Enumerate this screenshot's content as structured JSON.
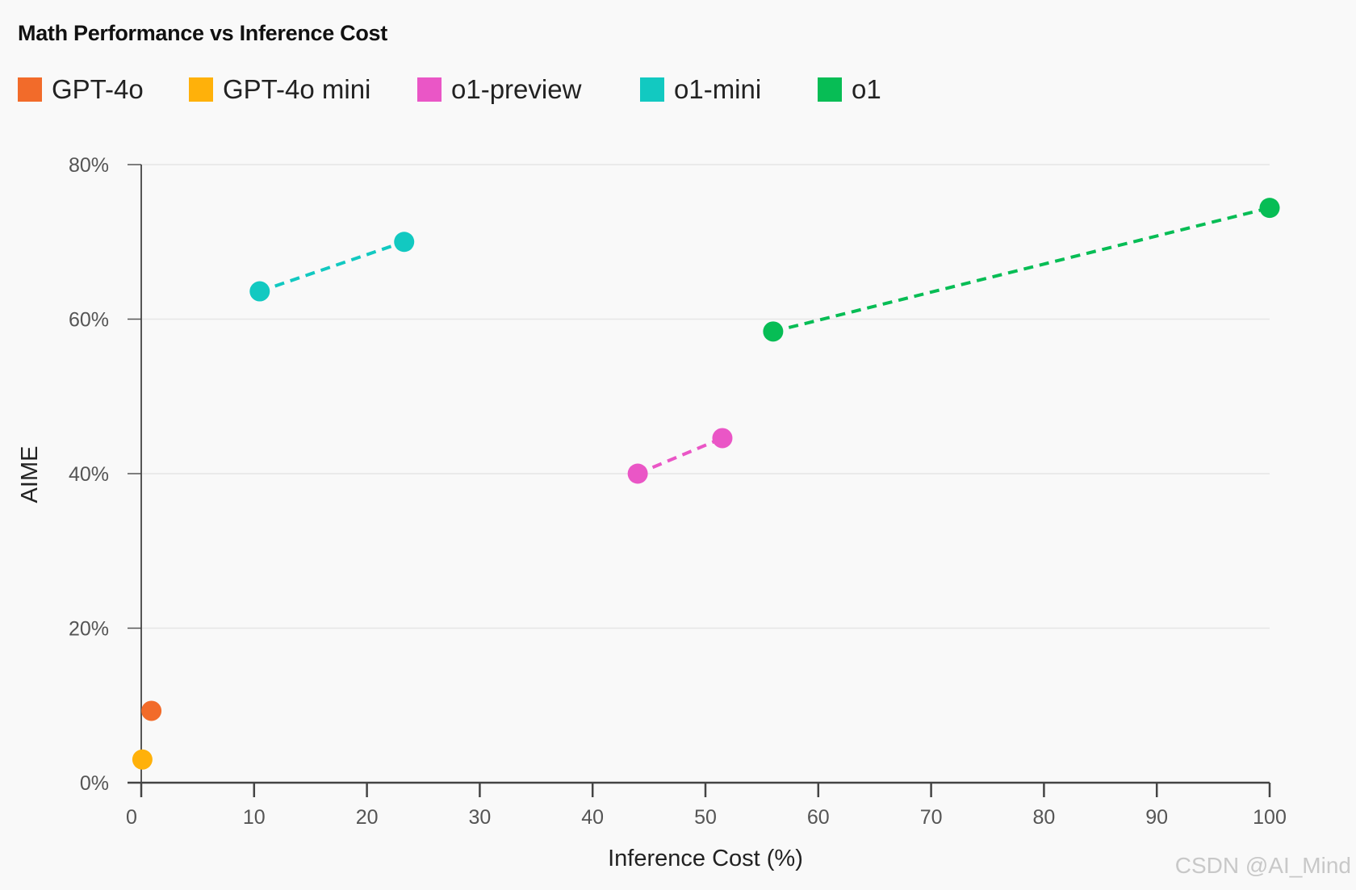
{
  "chart_data": {
    "type": "scatter",
    "title": "Math Performance vs Inference Cost",
    "xlabel": "Inference Cost (%)",
    "ylabel": "AIME",
    "xlim": [
      0,
      100
    ],
    "ylim": [
      0,
      80
    ],
    "xticks": [
      0,
      10,
      20,
      30,
      40,
      50,
      60,
      70,
      80,
      90,
      100
    ],
    "yticks": [
      0,
      20,
      40,
      60,
      80
    ],
    "ytick_labels": [
      "0%",
      "20%",
      "40%",
      "60%",
      "80%"
    ],
    "grid": "horizontal",
    "legend_position": "top-left",
    "series": [
      {
        "name": "GPT-4o",
        "color": "#f26b2a",
        "connected": false,
        "points": [
          [
            0.9,
            9.3
          ]
        ]
      },
      {
        "name": "GPT-4o mini",
        "color": "#ffb10a",
        "connected": false,
        "points": [
          [
            0.1,
            3.0
          ]
        ]
      },
      {
        "name": "o1-preview",
        "color": "#ea56c6",
        "connected": true,
        "points": [
          [
            44.0,
            40.0
          ],
          [
            51.5,
            44.6
          ]
        ]
      },
      {
        "name": "o1-mini",
        "color": "#12c9c1",
        "connected": true,
        "points": [
          [
            10.5,
            63.6
          ],
          [
            23.3,
            70.0
          ]
        ]
      },
      {
        "name": "o1",
        "color": "#07bd55",
        "connected": true,
        "points": [
          [
            56.0,
            58.4
          ],
          [
            100.0,
            74.4
          ]
        ]
      }
    ]
  },
  "watermark": "CSDN @AI_Mind"
}
